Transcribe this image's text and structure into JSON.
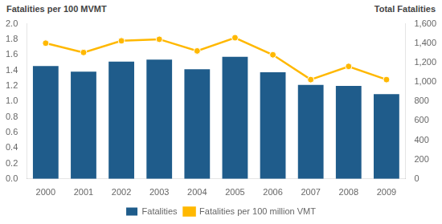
{
  "chart_data": {
    "type": "bar",
    "categories": [
      "2000",
      "2001",
      "2002",
      "2003",
      "2004",
      "2005",
      "2006",
      "2007",
      "2008",
      "2009"
    ],
    "series": [
      {
        "name": "Fatalities",
        "type": "bar",
        "axis": "y2",
        "color": "#1F5C8B",
        "values": [
          1165,
          1105,
          1210,
          1230,
          1130,
          1260,
          1100,
          970,
          960,
          875
        ]
      },
      {
        "name": "Fatalities per 100 million VMT",
        "type": "line",
        "axis": "y",
        "color": "#FFB800",
        "marker": "circle",
        "values": [
          1.75,
          1.63,
          1.78,
          1.8,
          1.65,
          1.82,
          1.6,
          1.28,
          1.45,
          1.28
        ]
      }
    ],
    "ylabel": "Fatalities per 100 MVMT",
    "y2label": "Total Fatalities",
    "ylim": [
      0.0,
      2.0
    ],
    "yticks": [
      {
        "value": 0.0,
        "label": "0.0"
      },
      0.2,
      0.4,
      0.6,
      0.8,
      {
        "value": 1.0,
        "label": "1.0"
      },
      1.2,
      1.4,
      1.6,
      1.8,
      {
        "value": 2.0,
        "label": "2.0"
      }
    ],
    "y2lim": [
      0,
      1600
    ],
    "y2ticks": [
      0,
      200,
      400,
      600,
      800,
      {
        "value": 1000,
        "label": "1,000"
      },
      {
        "value": 1200,
        "label": "1,200"
      },
      {
        "value": 1400,
        "label": "1,400"
      },
      {
        "value": 1600,
        "label": "1,600"
      }
    ],
    "legend": "bottom",
    "grid": false
  }
}
